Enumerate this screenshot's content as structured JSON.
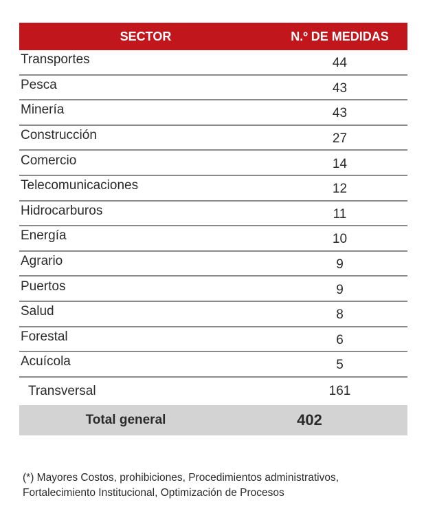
{
  "table": {
    "header": {
      "sector": "SECTOR",
      "count": "N.º DE MEDIDAS"
    },
    "rows": [
      {
        "sector": "Transportes",
        "count": "44"
      },
      {
        "sector": "Pesca",
        "count": "43"
      },
      {
        "sector": "Minería",
        "count": "43"
      },
      {
        "sector": "Construcción",
        "count": "27"
      },
      {
        "sector": "Comercio",
        "count": "14"
      },
      {
        "sector": "Telecomunicaciones",
        "count": "12"
      },
      {
        "sector": "Hidrocarburos",
        "count": "11"
      },
      {
        "sector": "Energía",
        "count": "10"
      },
      {
        "sector": "Agrario",
        "count": "9"
      },
      {
        "sector": "Puertos",
        "count": "9"
      },
      {
        "sector": "Salud",
        "count": "8"
      },
      {
        "sector": "Forestal",
        "count": "6"
      },
      {
        "sector": "Acuícola",
        "count": "5"
      }
    ],
    "transversal": {
      "sector": "Transversal",
      "count": "161"
    },
    "total": {
      "label": "Total general",
      "count": "402"
    }
  },
  "footnote": {
    "line1": "(*) Mayores Costos, prohibiciones, Procedimientos administrativos,",
    "line2": "Fortalecimiento Institucional, Optimización de Procesos"
  },
  "colors": {
    "header_bg": "#c0161c",
    "total_bg": "#d3d3d3"
  }
}
